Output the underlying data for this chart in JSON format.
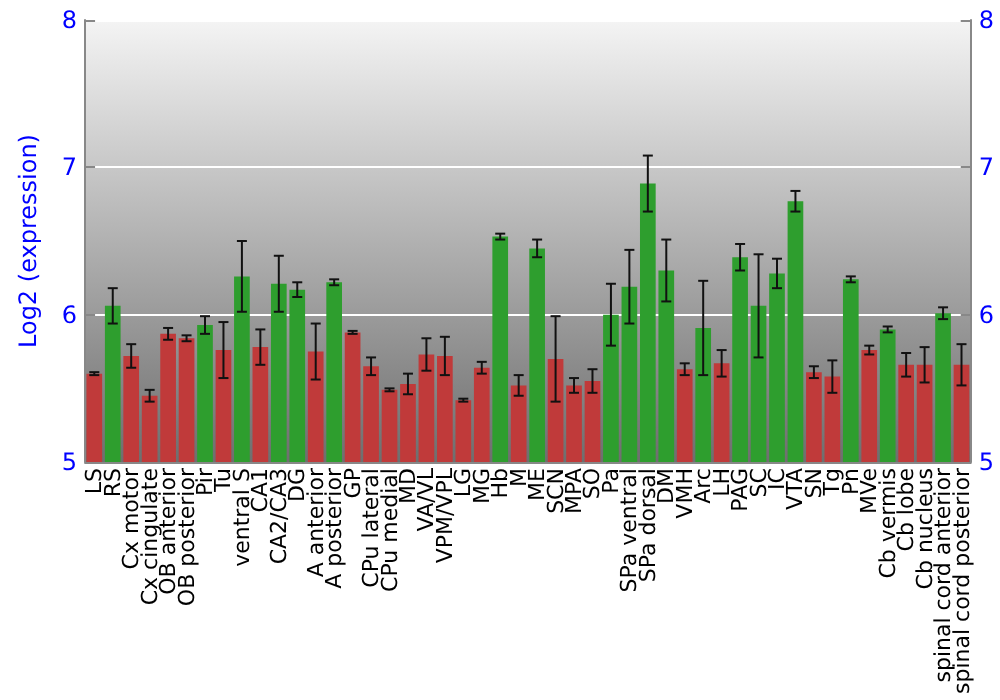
{
  "chart_data": {
    "type": "bar",
    "ylabel": "Log2 (expression)",
    "categories": [
      "LS",
      "RS",
      "Cx motor",
      "Cx cingulate",
      "OB anterior",
      "OB posterior",
      "Pir",
      "Tu",
      "ventral S",
      "CA1",
      "CA2/CA3",
      "DG",
      "A anterior",
      "A posterior",
      "GP",
      "CPu lateral",
      "CPu medial",
      "MD",
      "VA/VL",
      "VPM/VPL",
      "LG",
      "MG",
      "Hb",
      "M",
      "ME",
      "SCN",
      "MPA",
      "SO",
      "Pa",
      "SPa ventral",
      "SPa dorsal",
      "DM",
      "VMH",
      "Arc",
      "LH",
      "PAG",
      "SC",
      "IC",
      "VTA",
      "SN",
      "Tg",
      "Pn",
      "MVe",
      "Cb vermis",
      "Cb lobe",
      "Cb nucleus",
      "spinal cord anterior",
      "spinal cord posterior"
    ],
    "values": [
      5.6,
      6.06,
      5.72,
      5.45,
      5.87,
      5.84,
      5.93,
      5.76,
      6.26,
      5.78,
      6.21,
      6.17,
      5.75,
      6.22,
      5.88,
      5.65,
      5.49,
      5.53,
      5.73,
      5.72,
      5.42,
      5.64,
      6.53,
      5.52,
      6.45,
      5.7,
      5.52,
      5.55,
      6.0,
      6.19,
      6.89,
      6.3,
      5.63,
      5.91,
      5.67,
      6.39,
      6.06,
      6.28,
      6.77,
      5.61,
      5.58,
      6.24,
      5.76,
      5.9,
      5.66,
      5.66,
      6.01,
      5.66
    ],
    "errors": [
      0.01,
      0.12,
      0.08,
      0.04,
      0.04,
      0.02,
      0.06,
      0.19,
      0.24,
      0.12,
      0.19,
      0.05,
      0.19,
      0.02,
      0.01,
      0.06,
      0.01,
      0.07,
      0.11,
      0.13,
      0.01,
      0.04,
      0.02,
      0.07,
      0.06,
      0.29,
      0.05,
      0.08,
      0.21,
      0.25,
      0.19,
      0.21,
      0.04,
      0.32,
      0.09,
      0.09,
      0.35,
      0.1,
      0.07,
      0.04,
      0.11,
      0.02,
      0.03,
      0.02,
      0.08,
      0.12,
      0.04,
      0.14
    ],
    "colors": [
      "#c03a3a",
      "#2e9e2e",
      "#c03a3a",
      "#c03a3a",
      "#c03a3a",
      "#c03a3a",
      "#2e9e2e",
      "#c03a3a",
      "#2e9e2e",
      "#c03a3a",
      "#2e9e2e",
      "#2e9e2e",
      "#c03a3a",
      "#2e9e2e",
      "#c03a3a",
      "#c03a3a",
      "#c03a3a",
      "#c03a3a",
      "#c03a3a",
      "#c03a3a",
      "#c03a3a",
      "#c03a3a",
      "#2e9e2e",
      "#c03a3a",
      "#2e9e2e",
      "#c03a3a",
      "#c03a3a",
      "#c03a3a",
      "#2e9e2e",
      "#2e9e2e",
      "#2e9e2e",
      "#2e9e2e",
      "#c03a3a",
      "#2e9e2e",
      "#c03a3a",
      "#2e9e2e",
      "#2e9e2e",
      "#2e9e2e",
      "#2e9e2e",
      "#c03a3a",
      "#c03a3a",
      "#2e9e2e",
      "#c03a3a",
      "#2e9e2e",
      "#c03a3a",
      "#c03a3a",
      "#2e9e2e",
      "#c03a3a"
    ],
    "ylim": [
      5,
      8
    ],
    "yticks": [
      5,
      6,
      7,
      8
    ],
    "y2lim": [
      5,
      8
    ],
    "y2ticks": [
      5,
      6,
      7,
      8
    ],
    "grid": "y"
  }
}
